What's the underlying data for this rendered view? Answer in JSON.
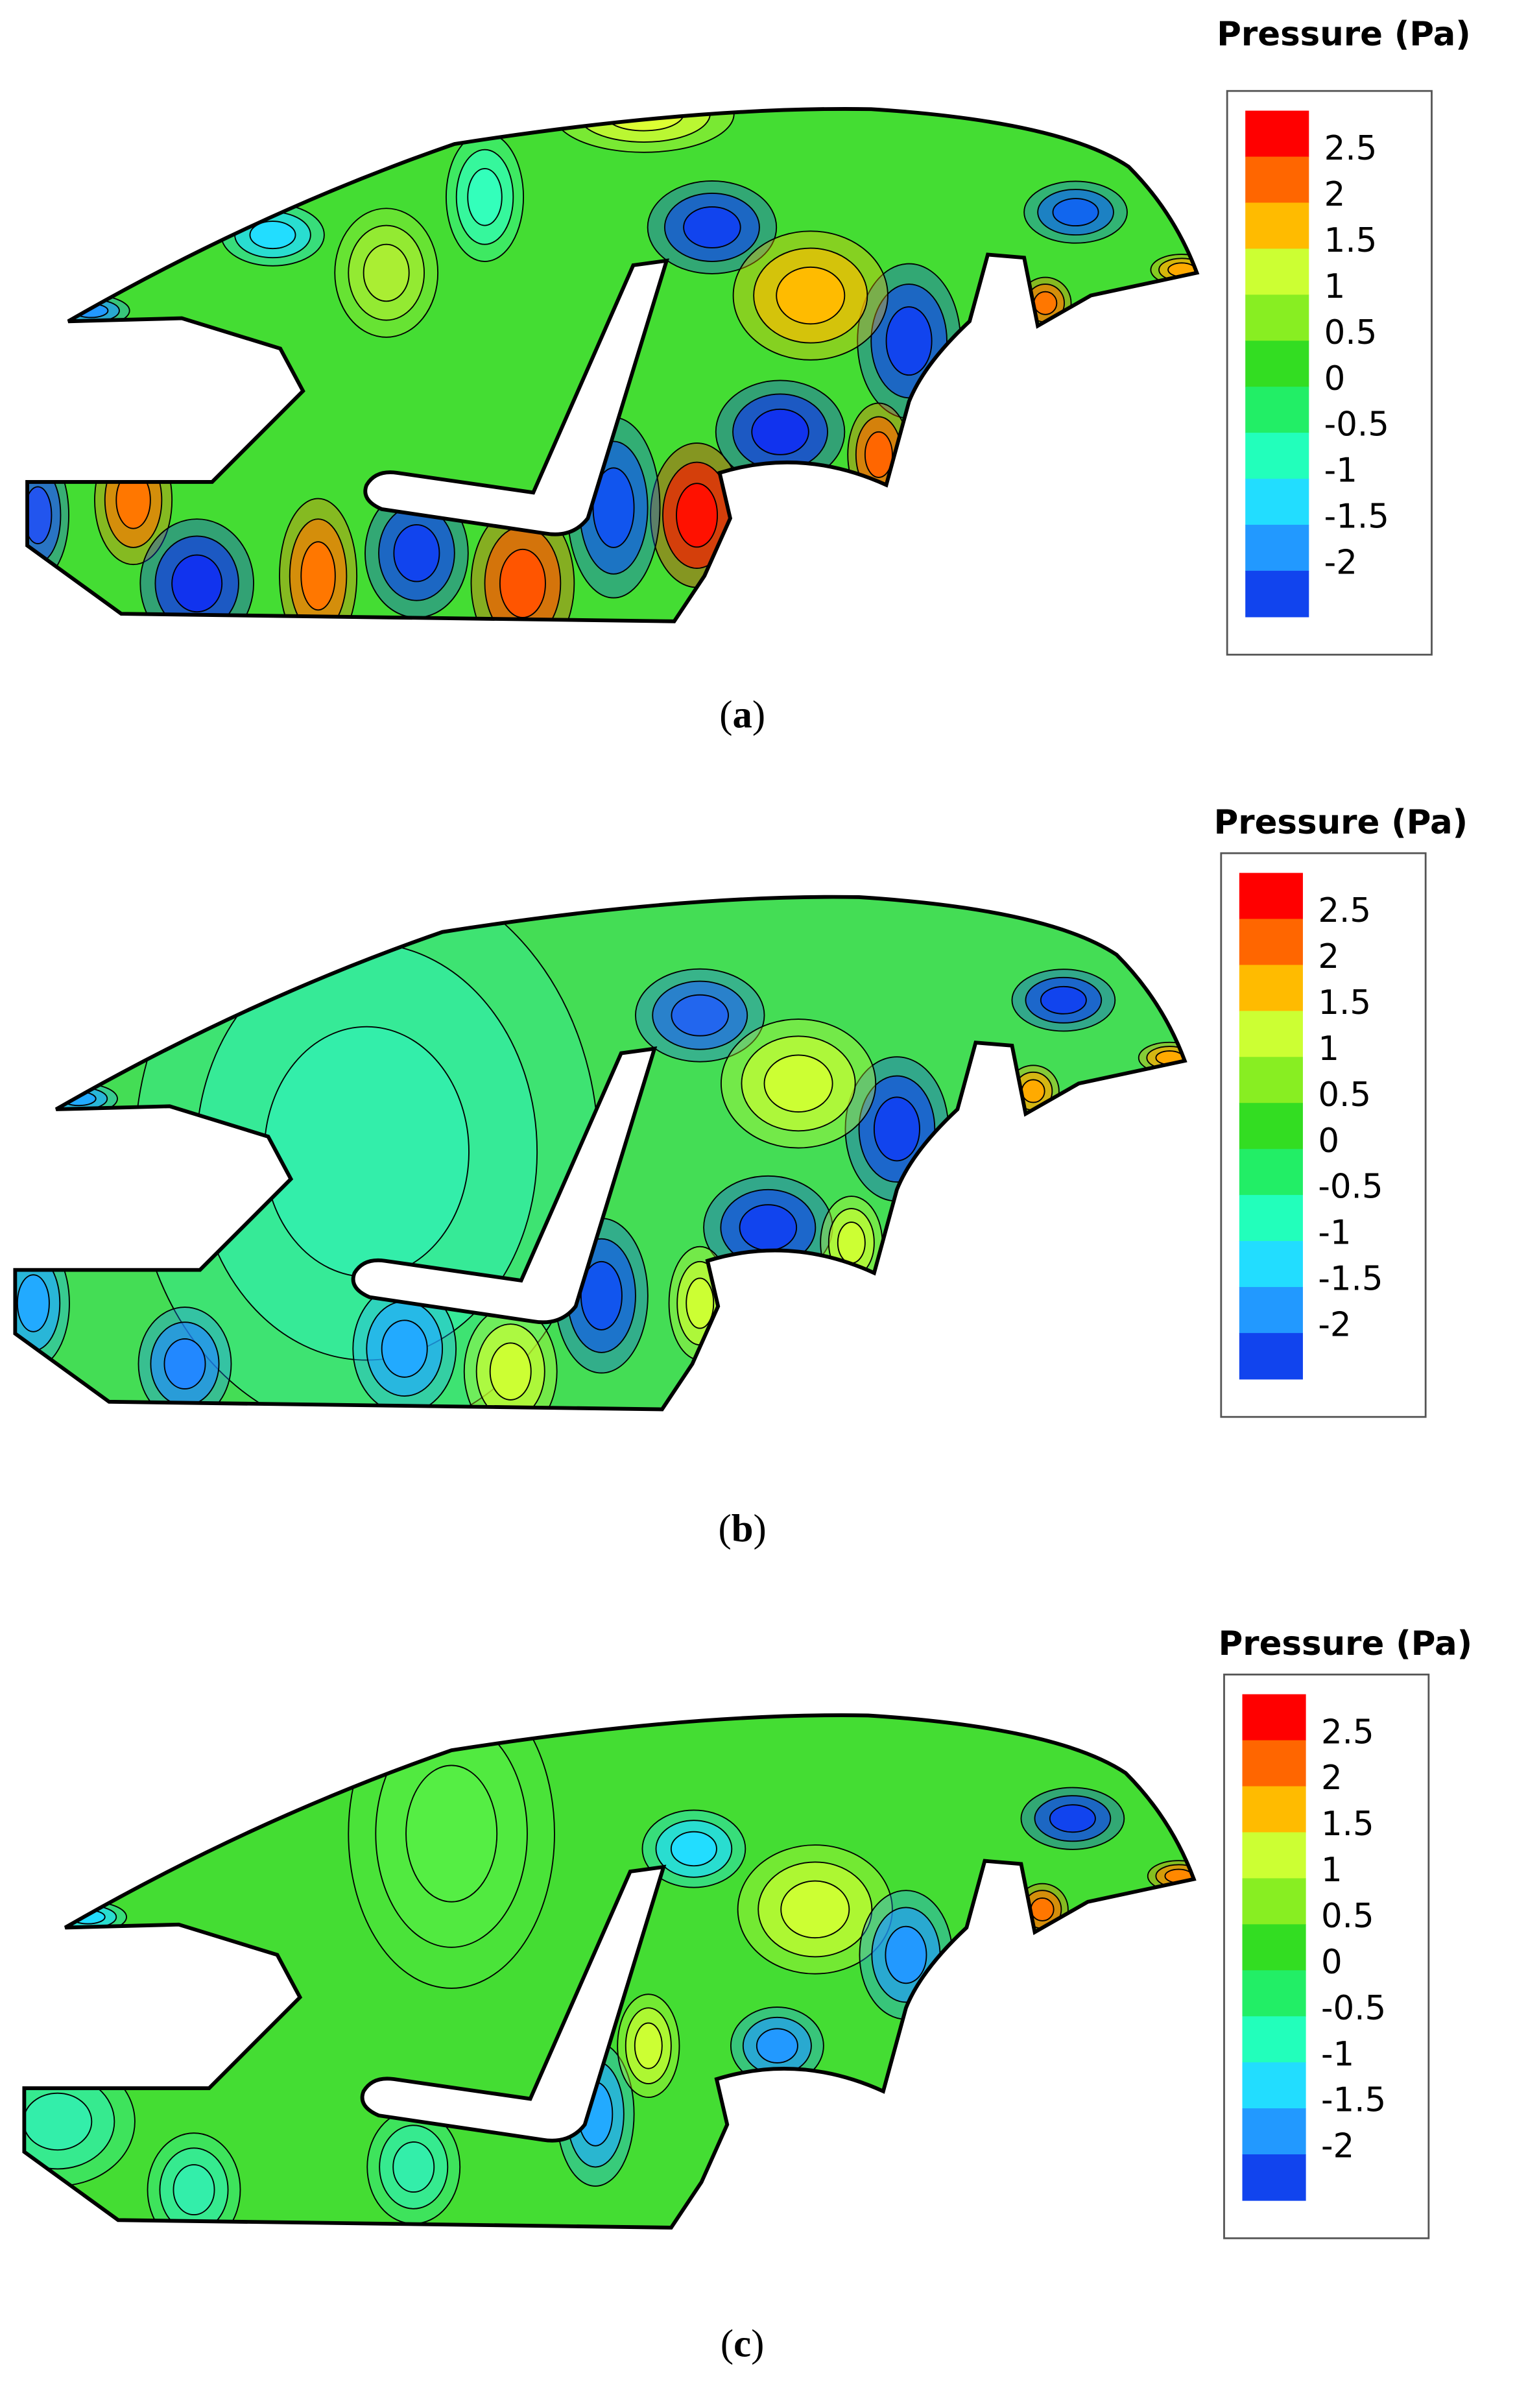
{
  "panels": [
    {
      "legend_title": "Pressure (Pa)",
      "legend_labels": [
        "2.5",
        "2",
        "1.5",
        "1",
        "0.5",
        "0",
        "-0.5",
        "-1",
        "-1.5",
        "-2"
      ],
      "caption": {
        "open": "(",
        "label": "a",
        "close": ")"
      }
    },
    {
      "legend_title": "Pressure (Pa)",
      "legend_labels": [
        "2.5",
        "2",
        "1.5",
        "1",
        "0.5",
        "0",
        "-0.5",
        "-1",
        "-1.5",
        "-2"
      ],
      "caption": {
        "open": "(",
        "label": "b",
        "close": ")"
      }
    },
    {
      "legend_title": "Pressure (Pa)",
      "legend_labels": [
        "2.5",
        "2",
        "1.5",
        "1",
        "0.5",
        "0",
        "-0.5",
        "-1",
        "-1.5",
        "-2"
      ],
      "caption": {
        "open": "(",
        "label": "c",
        "close": ")"
      }
    }
  ]
}
